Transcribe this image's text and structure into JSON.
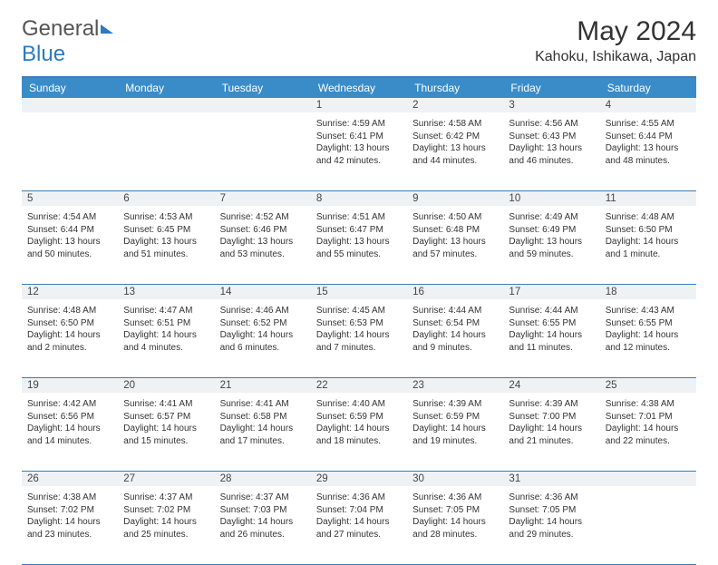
{
  "logo": {
    "text_general": "General",
    "text_blue": "Blue"
  },
  "title": "May 2024",
  "location": "Kahoku, Ishikawa, Japan",
  "colors": {
    "header_bg": "#3a8cc9",
    "header_text": "#ffffff",
    "border": "#3a7db8",
    "daynum_bg": "#eef2f5",
    "text": "#333333"
  },
  "day_names": [
    "Sunday",
    "Monday",
    "Tuesday",
    "Wednesday",
    "Thursday",
    "Friday",
    "Saturday"
  ],
  "weeks": [
    [
      {
        "n": "",
        "sr": "",
        "ss": "",
        "dl1": "",
        "dl2": ""
      },
      {
        "n": "",
        "sr": "",
        "ss": "",
        "dl1": "",
        "dl2": ""
      },
      {
        "n": "",
        "sr": "",
        "ss": "",
        "dl1": "",
        "dl2": ""
      },
      {
        "n": "1",
        "sr": "Sunrise: 4:59 AM",
        "ss": "Sunset: 6:41 PM",
        "dl1": "Daylight: 13 hours",
        "dl2": "and 42 minutes."
      },
      {
        "n": "2",
        "sr": "Sunrise: 4:58 AM",
        "ss": "Sunset: 6:42 PM",
        "dl1": "Daylight: 13 hours",
        "dl2": "and 44 minutes."
      },
      {
        "n": "3",
        "sr": "Sunrise: 4:56 AM",
        "ss": "Sunset: 6:43 PM",
        "dl1": "Daylight: 13 hours",
        "dl2": "and 46 minutes."
      },
      {
        "n": "4",
        "sr": "Sunrise: 4:55 AM",
        "ss": "Sunset: 6:44 PM",
        "dl1": "Daylight: 13 hours",
        "dl2": "and 48 minutes."
      }
    ],
    [
      {
        "n": "5",
        "sr": "Sunrise: 4:54 AM",
        "ss": "Sunset: 6:44 PM",
        "dl1": "Daylight: 13 hours",
        "dl2": "and 50 minutes."
      },
      {
        "n": "6",
        "sr": "Sunrise: 4:53 AM",
        "ss": "Sunset: 6:45 PM",
        "dl1": "Daylight: 13 hours",
        "dl2": "and 51 minutes."
      },
      {
        "n": "7",
        "sr": "Sunrise: 4:52 AM",
        "ss": "Sunset: 6:46 PM",
        "dl1": "Daylight: 13 hours",
        "dl2": "and 53 minutes."
      },
      {
        "n": "8",
        "sr": "Sunrise: 4:51 AM",
        "ss": "Sunset: 6:47 PM",
        "dl1": "Daylight: 13 hours",
        "dl2": "and 55 minutes."
      },
      {
        "n": "9",
        "sr": "Sunrise: 4:50 AM",
        "ss": "Sunset: 6:48 PM",
        "dl1": "Daylight: 13 hours",
        "dl2": "and 57 minutes."
      },
      {
        "n": "10",
        "sr": "Sunrise: 4:49 AM",
        "ss": "Sunset: 6:49 PM",
        "dl1": "Daylight: 13 hours",
        "dl2": "and 59 minutes."
      },
      {
        "n": "11",
        "sr": "Sunrise: 4:48 AM",
        "ss": "Sunset: 6:50 PM",
        "dl1": "Daylight: 14 hours",
        "dl2": "and 1 minute."
      }
    ],
    [
      {
        "n": "12",
        "sr": "Sunrise: 4:48 AM",
        "ss": "Sunset: 6:50 PM",
        "dl1": "Daylight: 14 hours",
        "dl2": "and 2 minutes."
      },
      {
        "n": "13",
        "sr": "Sunrise: 4:47 AM",
        "ss": "Sunset: 6:51 PM",
        "dl1": "Daylight: 14 hours",
        "dl2": "and 4 minutes."
      },
      {
        "n": "14",
        "sr": "Sunrise: 4:46 AM",
        "ss": "Sunset: 6:52 PM",
        "dl1": "Daylight: 14 hours",
        "dl2": "and 6 minutes."
      },
      {
        "n": "15",
        "sr": "Sunrise: 4:45 AM",
        "ss": "Sunset: 6:53 PM",
        "dl1": "Daylight: 14 hours",
        "dl2": "and 7 minutes."
      },
      {
        "n": "16",
        "sr": "Sunrise: 4:44 AM",
        "ss": "Sunset: 6:54 PM",
        "dl1": "Daylight: 14 hours",
        "dl2": "and 9 minutes."
      },
      {
        "n": "17",
        "sr": "Sunrise: 4:44 AM",
        "ss": "Sunset: 6:55 PM",
        "dl1": "Daylight: 14 hours",
        "dl2": "and 11 minutes."
      },
      {
        "n": "18",
        "sr": "Sunrise: 4:43 AM",
        "ss": "Sunset: 6:55 PM",
        "dl1": "Daylight: 14 hours",
        "dl2": "and 12 minutes."
      }
    ],
    [
      {
        "n": "19",
        "sr": "Sunrise: 4:42 AM",
        "ss": "Sunset: 6:56 PM",
        "dl1": "Daylight: 14 hours",
        "dl2": "and 14 minutes."
      },
      {
        "n": "20",
        "sr": "Sunrise: 4:41 AM",
        "ss": "Sunset: 6:57 PM",
        "dl1": "Daylight: 14 hours",
        "dl2": "and 15 minutes."
      },
      {
        "n": "21",
        "sr": "Sunrise: 4:41 AM",
        "ss": "Sunset: 6:58 PM",
        "dl1": "Daylight: 14 hours",
        "dl2": "and 17 minutes."
      },
      {
        "n": "22",
        "sr": "Sunrise: 4:40 AM",
        "ss": "Sunset: 6:59 PM",
        "dl1": "Daylight: 14 hours",
        "dl2": "and 18 minutes."
      },
      {
        "n": "23",
        "sr": "Sunrise: 4:39 AM",
        "ss": "Sunset: 6:59 PM",
        "dl1": "Daylight: 14 hours",
        "dl2": "and 19 minutes."
      },
      {
        "n": "24",
        "sr": "Sunrise: 4:39 AM",
        "ss": "Sunset: 7:00 PM",
        "dl1": "Daylight: 14 hours",
        "dl2": "and 21 minutes."
      },
      {
        "n": "25",
        "sr": "Sunrise: 4:38 AM",
        "ss": "Sunset: 7:01 PM",
        "dl1": "Daylight: 14 hours",
        "dl2": "and 22 minutes."
      }
    ],
    [
      {
        "n": "26",
        "sr": "Sunrise: 4:38 AM",
        "ss": "Sunset: 7:02 PM",
        "dl1": "Daylight: 14 hours",
        "dl2": "and 23 minutes."
      },
      {
        "n": "27",
        "sr": "Sunrise: 4:37 AM",
        "ss": "Sunset: 7:02 PM",
        "dl1": "Daylight: 14 hours",
        "dl2": "and 25 minutes."
      },
      {
        "n": "28",
        "sr": "Sunrise: 4:37 AM",
        "ss": "Sunset: 7:03 PM",
        "dl1": "Daylight: 14 hours",
        "dl2": "and 26 minutes."
      },
      {
        "n": "29",
        "sr": "Sunrise: 4:36 AM",
        "ss": "Sunset: 7:04 PM",
        "dl1": "Daylight: 14 hours",
        "dl2": "and 27 minutes."
      },
      {
        "n": "30",
        "sr": "Sunrise: 4:36 AM",
        "ss": "Sunset: 7:05 PM",
        "dl1": "Daylight: 14 hours",
        "dl2": "and 28 minutes."
      },
      {
        "n": "31",
        "sr": "Sunrise: 4:36 AM",
        "ss": "Sunset: 7:05 PM",
        "dl1": "Daylight: 14 hours",
        "dl2": "and 29 minutes."
      },
      {
        "n": "",
        "sr": "",
        "ss": "",
        "dl1": "",
        "dl2": ""
      }
    ]
  ]
}
